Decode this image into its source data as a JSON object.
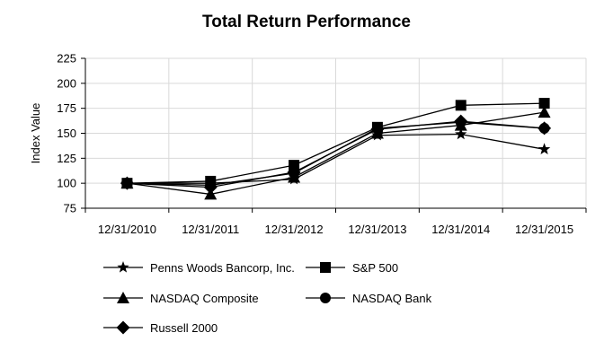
{
  "chart_data": {
    "type": "line",
    "title": "Total Return Performance",
    "xlabel": "",
    "ylabel": "Index Value",
    "categories": [
      "12/31/2010",
      "12/31/2011",
      "12/31/2012",
      "12/31/2013",
      "12/31/2014",
      "12/31/2015"
    ],
    "ylim": [
      75,
      225
    ],
    "yticks": [
      75,
      100,
      125,
      150,
      175,
      200,
      225
    ],
    "grid": true,
    "legend_position": "bottom",
    "series": [
      {
        "name": "Penns Woods Bancorp, Inc.",
        "marker": "star",
        "values": [
          100,
          100,
          104,
          148,
          149,
          134
        ]
      },
      {
        "name": "S&P 500",
        "marker": "square",
        "values": [
          100,
          102,
          118,
          156,
          178,
          180
        ]
      },
      {
        "name": "NASDAQ Composite",
        "marker": "triangle",
        "values": [
          100,
          89,
          106,
          150,
          158,
          171
        ]
      },
      {
        "name": "NASDAQ Bank",
        "marker": "circle",
        "values": [
          100,
          98,
          110,
          155,
          161,
          155
        ]
      },
      {
        "name": "Russell 2000",
        "marker": "diamond",
        "values": [
          100,
          96,
          111,
          154,
          162,
          155
        ]
      }
    ],
    "line_color": "#000000"
  }
}
